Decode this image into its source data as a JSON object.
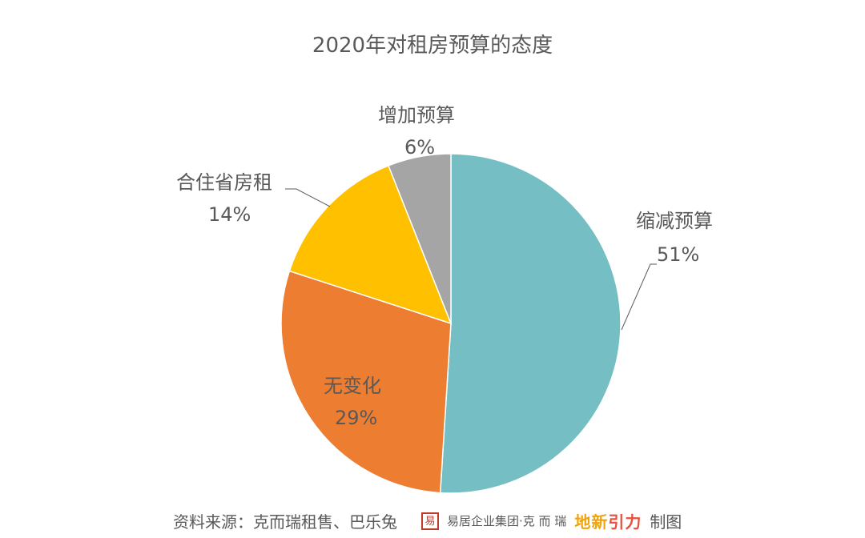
{
  "chart_data": {
    "type": "pie",
    "title": "2020年对租房预算的态度",
    "slices": [
      {
        "label": "缩减预算",
        "value": 51,
        "value_label": "51%",
        "color": "#75bfc4"
      },
      {
        "label": "无变化",
        "value": 29,
        "value_label": "29%",
        "color": "#ed7d31"
      },
      {
        "label": "合住省房租",
        "value": 14,
        "value_label": "14%",
        "color": "#ffc000"
      },
      {
        "label": "增加预算",
        "value": 6,
        "value_label": "6%",
        "color": "#a5a5a5"
      }
    ],
    "start": "12 o'clock, clockwise",
    "legend": "none"
  },
  "footer": {
    "source": "资料来源：克而瑞租售、巴乐兔",
    "logo_seal": "易",
    "logo_group": "易居企业集团·克 而 瑞",
    "logo_brand_1": "地",
    "logo_brand_2": "新",
    "logo_brand_3": "引",
    "logo_brand_4": "力",
    "made_by": "制图"
  }
}
